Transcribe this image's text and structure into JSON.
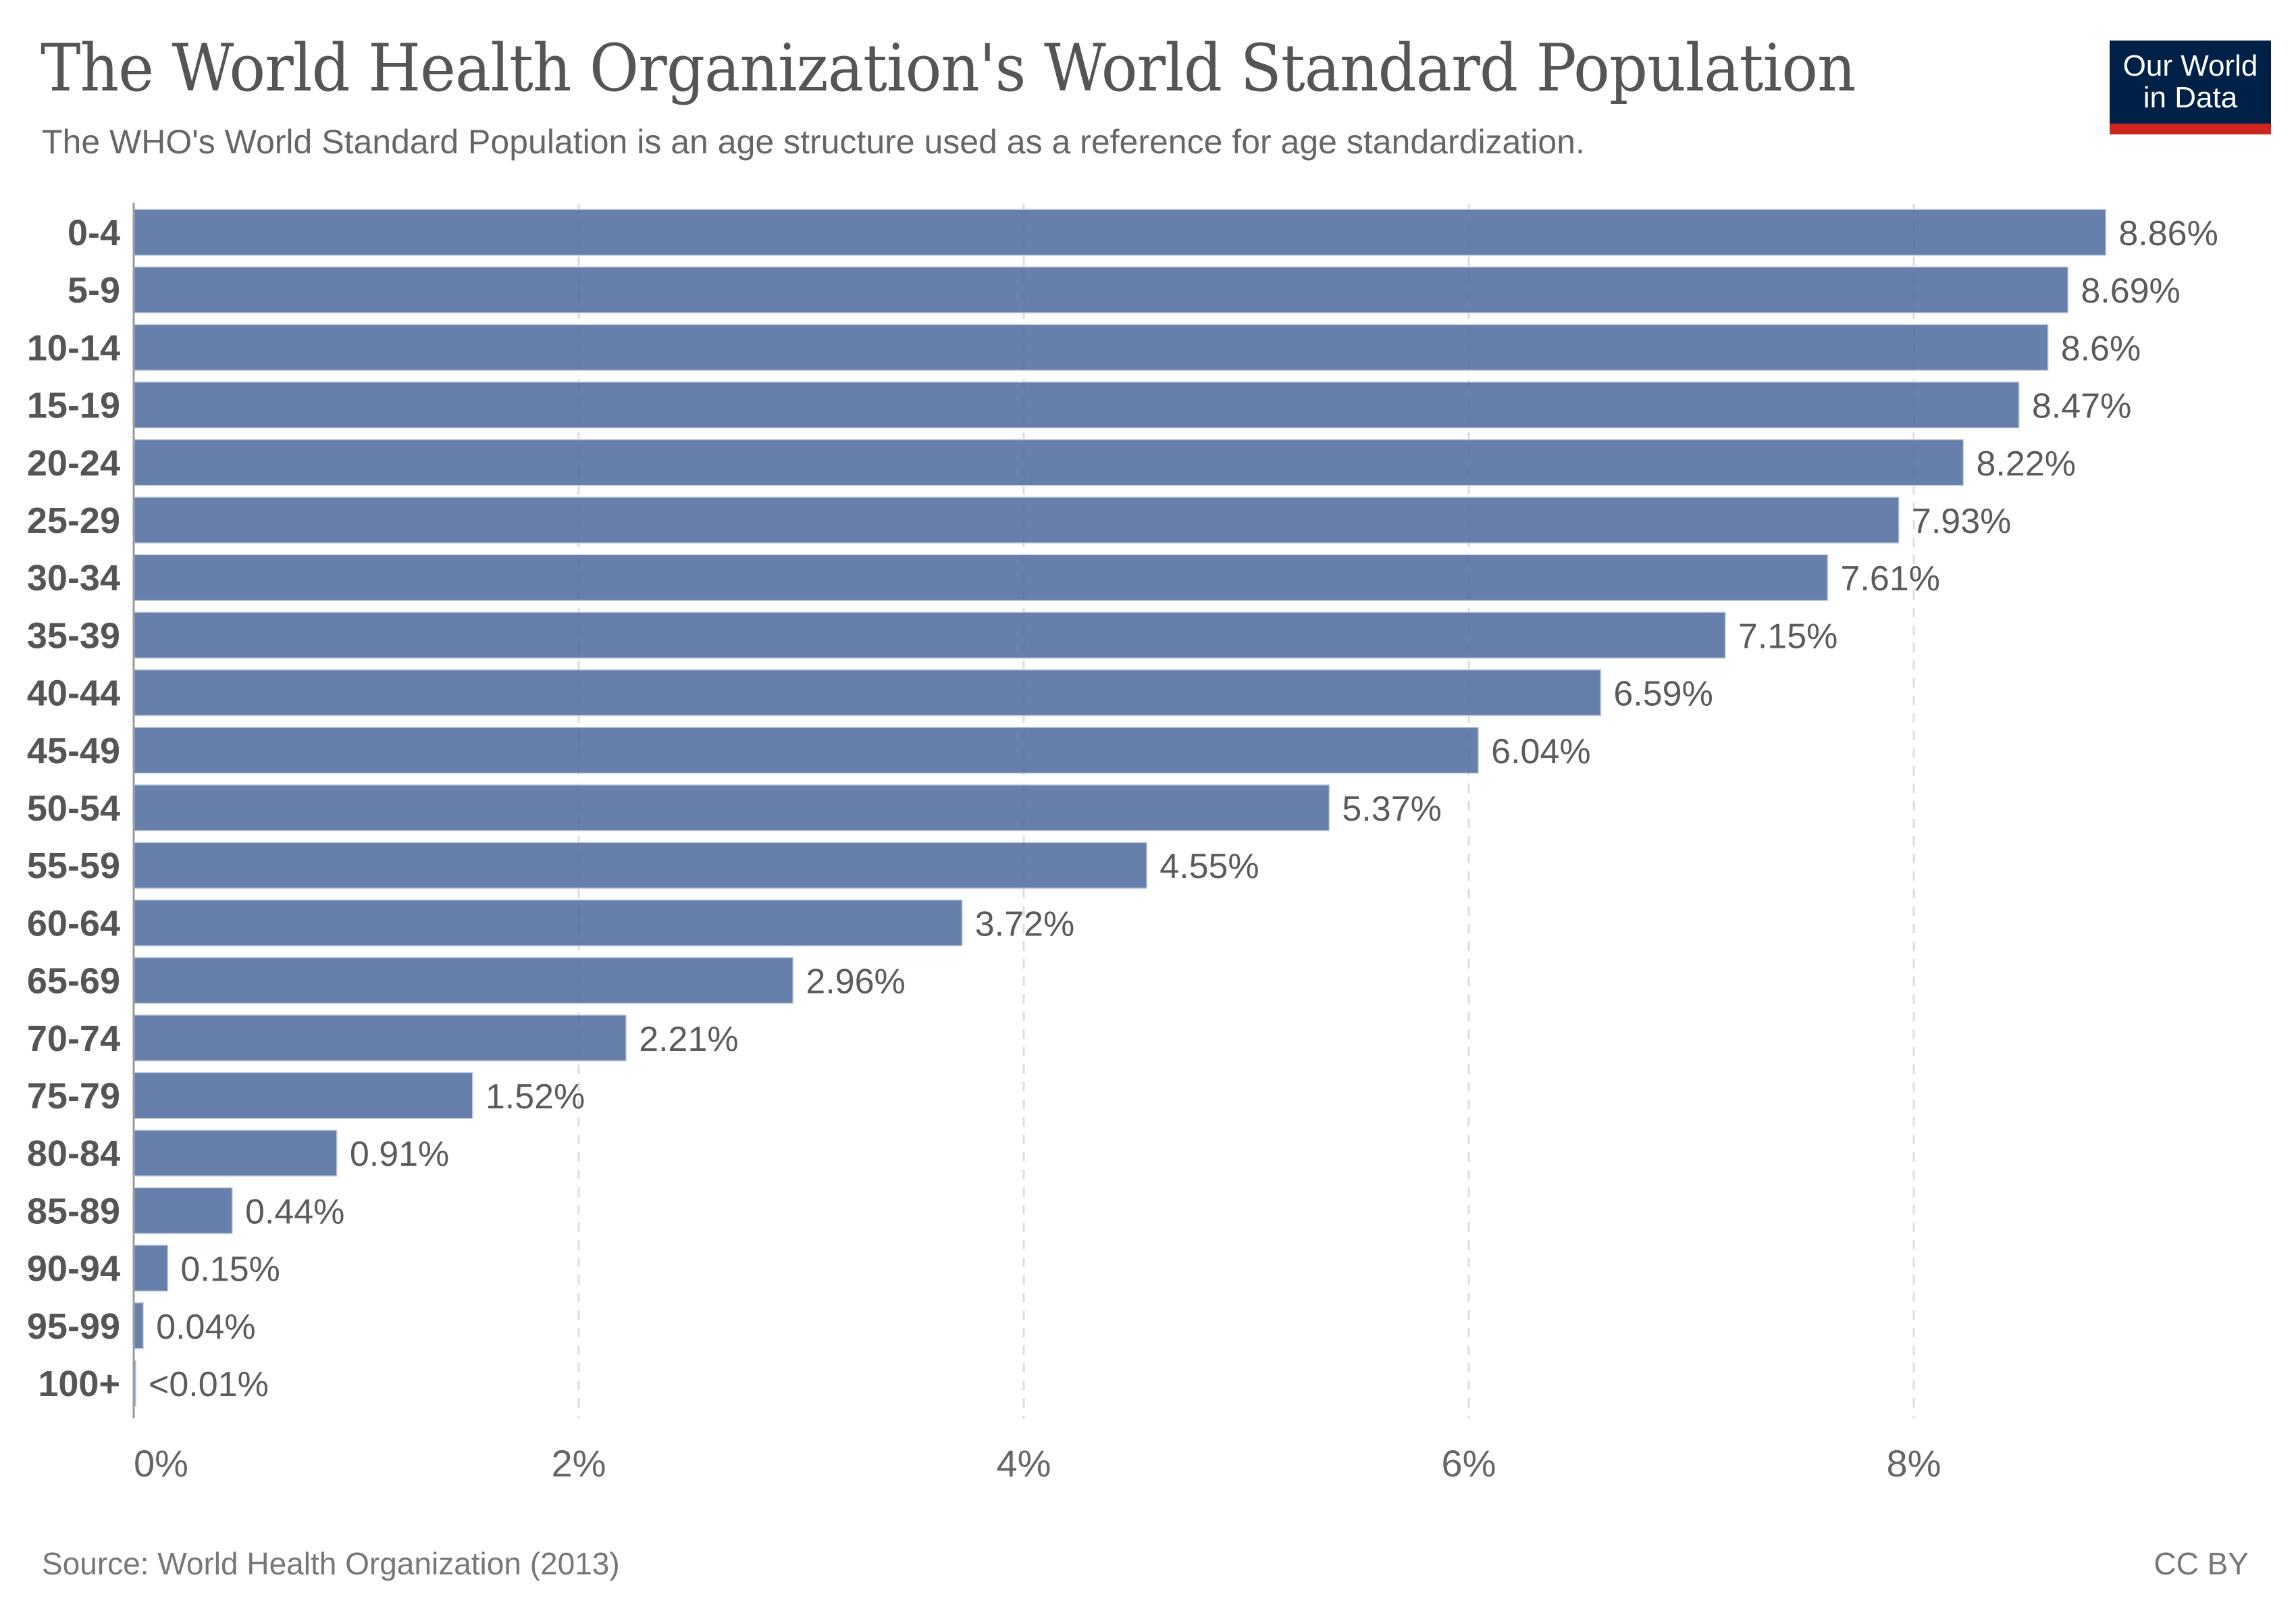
{
  "header": {
    "title": "The World Health Organization's World Standard Population",
    "subtitle": "The WHO's World Standard Population is an age structure used as a reference for age standardization.",
    "logo_line1": "Our World",
    "logo_line2": "in Data"
  },
  "footer": {
    "source": "Source: World Health Organization (2013)",
    "license": "CC BY"
  },
  "colors": {
    "bar": "#4c6a9c",
    "logo_bg": "#002147",
    "logo_accent": "#ce261e"
  },
  "chart_data": {
    "type": "bar",
    "orientation": "horizontal",
    "title": "The World Health Organization's World Standard Population",
    "subtitle": "The WHO's World Standard Population is an age structure used as a reference for age standardization.",
    "xlabel": "",
    "ylabel": "",
    "xlim": [
      0,
      9.5
    ],
    "grid": "vertical-dashed",
    "categories": [
      "0-4",
      "5-9",
      "10-14",
      "15-19",
      "20-24",
      "25-29",
      "30-34",
      "35-39",
      "40-44",
      "45-49",
      "50-54",
      "55-59",
      "60-64",
      "65-69",
      "70-74",
      "75-79",
      "80-84",
      "85-89",
      "90-94",
      "95-99",
      "100+"
    ],
    "values": [
      8.86,
      8.69,
      8.6,
      8.47,
      8.22,
      7.93,
      7.61,
      7.15,
      6.59,
      6.04,
      5.37,
      4.55,
      3.72,
      2.96,
      2.21,
      1.52,
      0.91,
      0.44,
      0.15,
      0.04,
      0.005
    ],
    "value_labels": [
      "8.86%",
      "8.69%",
      "8.6%",
      "8.47%",
      "8.22%",
      "7.93%",
      "7.61%",
      "7.15%",
      "6.59%",
      "6.04%",
      "5.37%",
      "4.55%",
      "3.72%",
      "2.96%",
      "2.21%",
      "1.52%",
      "0.91%",
      "0.44%",
      "0.15%",
      "0.04%",
      "<0.01%"
    ],
    "x_ticks": [
      0,
      2,
      4,
      6,
      8
    ],
    "x_tick_labels": [
      "0%",
      "2%",
      "4%",
      "6%",
      "8%"
    ],
    "unit": "%"
  }
}
